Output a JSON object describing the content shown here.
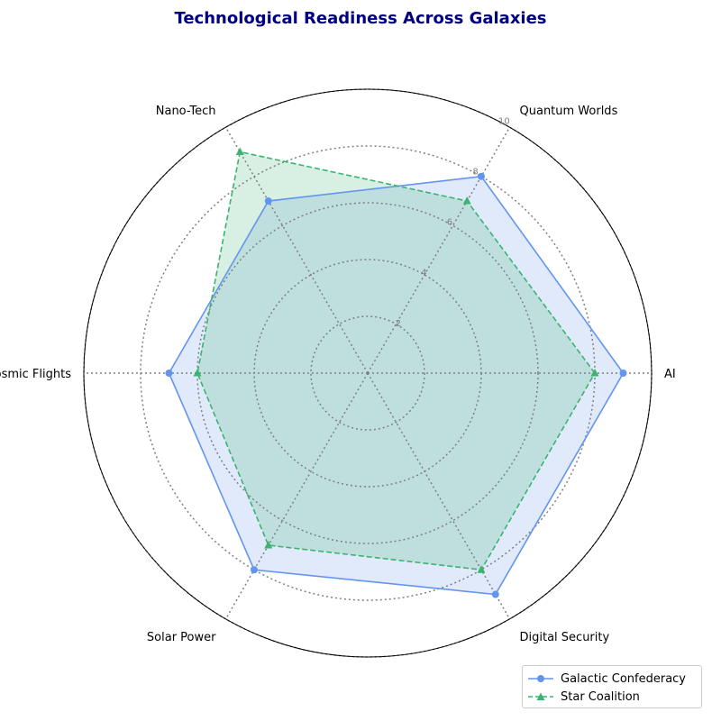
{
  "chart_data": {
    "type": "radar",
    "title": "Technological Readiness Across Galaxies",
    "categories": [
      "AI",
      "Quantum Worlds",
      "Nano-Tech",
      "Cosmic Flights",
      "Solar Power",
      "Digital Security"
    ],
    "rlim": [
      0,
      10
    ],
    "rticks": [
      2,
      4,
      6,
      8,
      10
    ],
    "grid": true,
    "legend_position": "bottom-right",
    "series": [
      {
        "name": "Galactic Confederacy",
        "values": [
          9,
          8,
          7,
          7,
          8,
          9
        ],
        "color": "#6495ed",
        "line_style": "solid",
        "marker": "circle"
      },
      {
        "name": "Star Coalition",
        "values": [
          8,
          7,
          9,
          6,
          7,
          8
        ],
        "color": "#3cb371",
        "line_style": "dashed",
        "marker": "triangle"
      }
    ]
  }
}
